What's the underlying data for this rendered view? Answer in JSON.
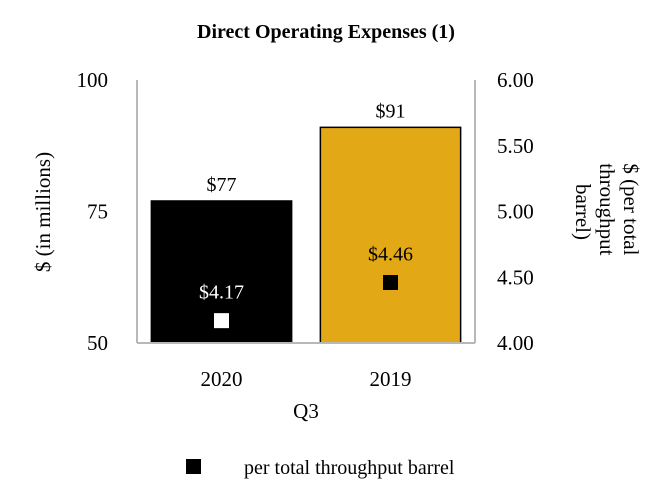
{
  "chart_data": {
    "type": "bar",
    "title": "Direct Operating Expenses (1)",
    "xlabel": "Q3",
    "ylabel": "$ (in millions)",
    "y2label": "$ (per total throughput barrel)",
    "categories": [
      "2020",
      "2019"
    ],
    "series": [
      {
        "type": "bar",
        "axis": "left",
        "values": [
          77,
          91
        ],
        "labels": [
          "$77",
          "$91"
        ],
        "colors": [
          "#000000",
          "#E3A815"
        ]
      },
      {
        "name": "per total throughput barrel",
        "type": "point",
        "axis": "right",
        "values": [
          4.17,
          4.46
        ],
        "labels": [
          "$4.17",
          "$4.46"
        ],
        "colors": [
          "#FFFFFF",
          "#000000"
        ]
      }
    ],
    "ylim": [
      50,
      100
    ],
    "yticks": [
      "50",
      "75",
      "100"
    ],
    "y2lim": [
      4.0,
      6.0
    ],
    "y2ticks": [
      "4.00",
      "4.50",
      "5.00",
      "5.50",
      "6.00"
    ],
    "grid": false,
    "legend": "bottom"
  }
}
